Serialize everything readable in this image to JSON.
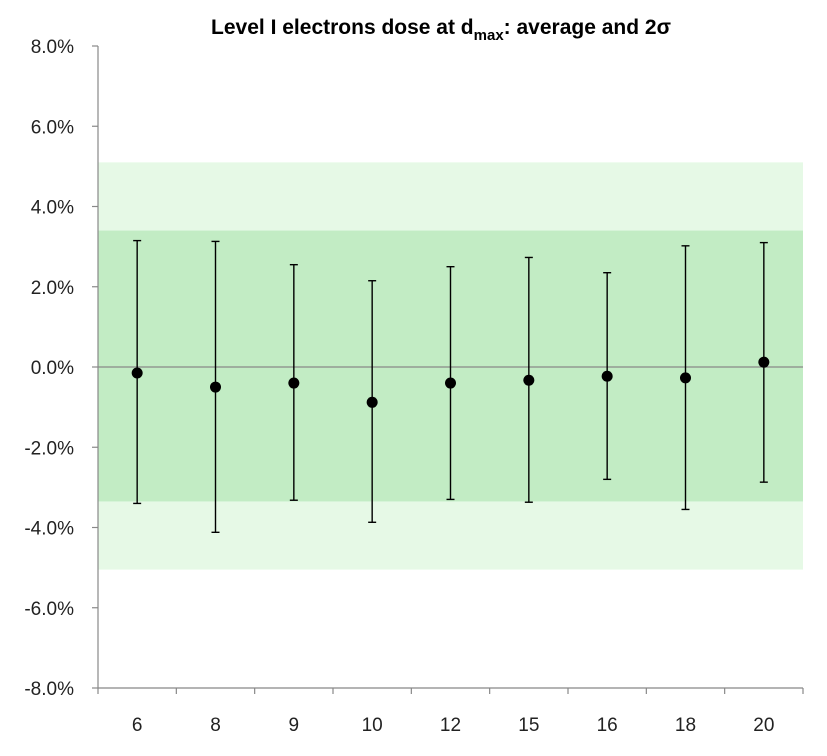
{
  "chart_data": {
    "type": "scatter",
    "title": {
      "prefix": "Level I electrons dose at d",
      "subscript": "max",
      "suffix": ": average and 2σ"
    },
    "xlabel": "",
    "ylabel": "",
    "categories": [
      "6",
      "8",
      "9",
      "10",
      "12",
      "15",
      "16",
      "18",
      "20"
    ],
    "ylim": [
      -8.0,
      8.0
    ],
    "yticks": [
      8.0,
      6.0,
      4.0,
      2.0,
      0.0,
      -2.0,
      -4.0,
      -6.0,
      -8.0
    ],
    "ytick_labels": [
      "8.0%",
      "6.0%",
      "4.0%",
      "2.0%",
      "0.0%",
      "-2.0%",
      "-4.0%",
      "-6.0%",
      "-8.0%"
    ],
    "y_unit": "%",
    "series": [
      {
        "values": [
          -0.15,
          -0.5,
          -0.4,
          -0.88,
          -0.4,
          -0.33,
          -0.23,
          -0.27,
          0.12
        ],
        "error_upper": [
          3.15,
          3.13,
          2.55,
          2.15,
          2.5,
          2.73,
          2.35,
          3.02,
          3.1
        ],
        "error_lower": [
          -3.4,
          -4.12,
          -3.32,
          -3.87,
          -3.3,
          -3.37,
          -2.8,
          -3.55,
          -2.87
        ]
      }
    ],
    "bands": [
      {
        "from": -5.05,
        "to": 5.1,
        "color": "#e6f9e6"
      },
      {
        "from": -3.35,
        "to": 3.4,
        "color": "#c2ecc4"
      }
    ],
    "zero_line": true,
    "grid": false,
    "legend": "none",
    "colors": {
      "marker": "#000000",
      "axis": "#888888",
      "zero_line": "#888888"
    }
  }
}
